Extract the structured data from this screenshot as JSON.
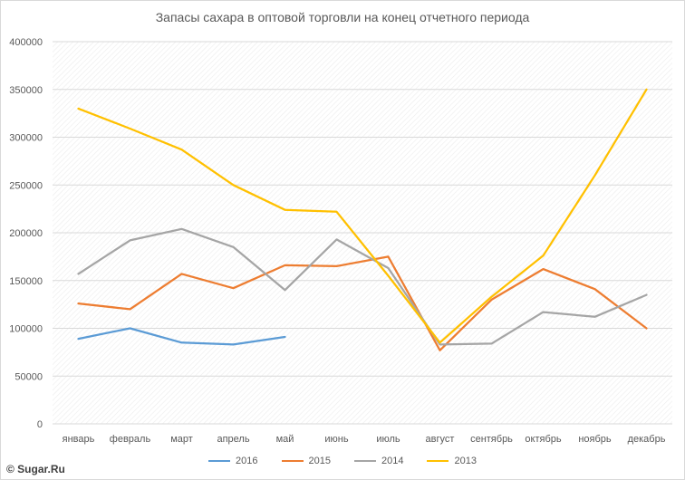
{
  "chart_data": {
    "type": "line",
    "title": "Запасы сахара в оптовой торговли на конец отчетного периода",
    "categories": [
      "январь",
      "февраль",
      "март",
      "апрель",
      "май",
      "июнь",
      "июль",
      "август",
      "сентябрь",
      "октябрь",
      "ноябрь",
      "декабрь"
    ],
    "ylim": [
      0,
      400000
    ],
    "yticks": [
      0,
      50000,
      100000,
      150000,
      200000,
      250000,
      300000,
      350000,
      400000
    ],
    "grid": true,
    "legend_position": "bottom",
    "series": [
      {
        "name": "2016",
        "color": "#5b9bd5",
        "values": [
          89000,
          100000,
          85000,
          83000,
          91000,
          null,
          null,
          null,
          null,
          null,
          null,
          null
        ]
      },
      {
        "name": "2015",
        "color": "#ed7d31",
        "values": [
          126000,
          120000,
          157000,
          142000,
          166000,
          165000,
          175000,
          77000,
          130000,
          162000,
          141000,
          100000
        ]
      },
      {
        "name": "2014",
        "color": "#a5a5a5",
        "values": [
          157000,
          192000,
          204000,
          185000,
          140000,
          193000,
          163000,
          83000,
          84000,
          117000,
          112000,
          135000
        ]
      },
      {
        "name": "2013",
        "color": "#ffc000",
        "values": [
          330000,
          309000,
          287000,
          250000,
          224000,
          222000,
          155000,
          85000,
          133000,
          176000,
          260000,
          350000
        ]
      }
    ]
  },
  "watermark": "© Sugar.Ru"
}
